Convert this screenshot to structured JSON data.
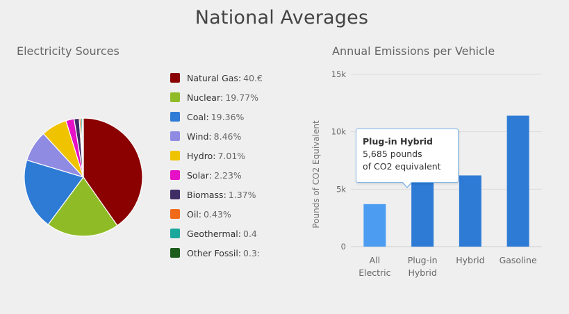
{
  "page": {
    "title": "National Averages"
  },
  "chart_data": [
    {
      "type": "pie",
      "title": "Electricity Sources",
      "legend_position": "right",
      "slices": [
        {
          "name": "Natural Gas",
          "label": "40.€",
          "value": 40.0,
          "color": "#8b0000"
        },
        {
          "name": "Nuclear",
          "label": "19.77%",
          "value": 19.77,
          "color": "#8fbc26"
        },
        {
          "name": "Coal",
          "label": "19.36%",
          "value": 19.36,
          "color": "#2e7bd6"
        },
        {
          "name": "Wind",
          "label": "8.46%",
          "value": 8.46,
          "color": "#8f8be3"
        },
        {
          "name": "Hydro",
          "label": "7.01%",
          "value": 7.01,
          "color": "#f0c300"
        },
        {
          "name": "Solar",
          "label": "2.23%",
          "value": 2.23,
          "color": "#e610c6"
        },
        {
          "name": "Biomass",
          "label": "1.37%",
          "value": 1.37,
          "color": "#3f2d66"
        },
        {
          "name": "Oil",
          "label": "0.43%",
          "value": 0.43,
          "color": "#f06a1a"
        },
        {
          "name": "Geothermal",
          "label": "0.4",
          "value": 0.4,
          "color": "#1ba89c"
        },
        {
          "name": "Other Fossil",
          "label": "0.3:",
          "value": 0.3,
          "color": "#1d5c1d"
        }
      ]
    },
    {
      "type": "bar",
      "title": "Annual Emissions per Vehicle",
      "ylabel": "Pounds of CO2 Equivalent",
      "ylim": [
        0,
        15000
      ],
      "yticks": [
        {
          "value": 0,
          "label": "0"
        },
        {
          "value": 5000,
          "label": "5k"
        },
        {
          "value": 10000,
          "label": "10k"
        },
        {
          "value": 15000,
          "label": "15k"
        }
      ],
      "grid": true,
      "categories": [
        {
          "label_lines": [
            "All",
            "Electric"
          ],
          "value": 3700,
          "color": "#4c9df1"
        },
        {
          "label_lines": [
            "Plug-in",
            "Hybrid"
          ],
          "value": 5685,
          "color": "#2e7bd6"
        },
        {
          "label_lines": [
            "Hybrid"
          ],
          "value": 6200,
          "color": "#2e7bd6"
        },
        {
          "label_lines": [
            "Gasoline"
          ],
          "value": 11400,
          "color": "#2e7bd6"
        }
      ],
      "tooltip": {
        "title": "Plug-in Hybrid",
        "line1": "5,685 pounds",
        "line2": "of CO2 equivalent"
      }
    }
  ]
}
